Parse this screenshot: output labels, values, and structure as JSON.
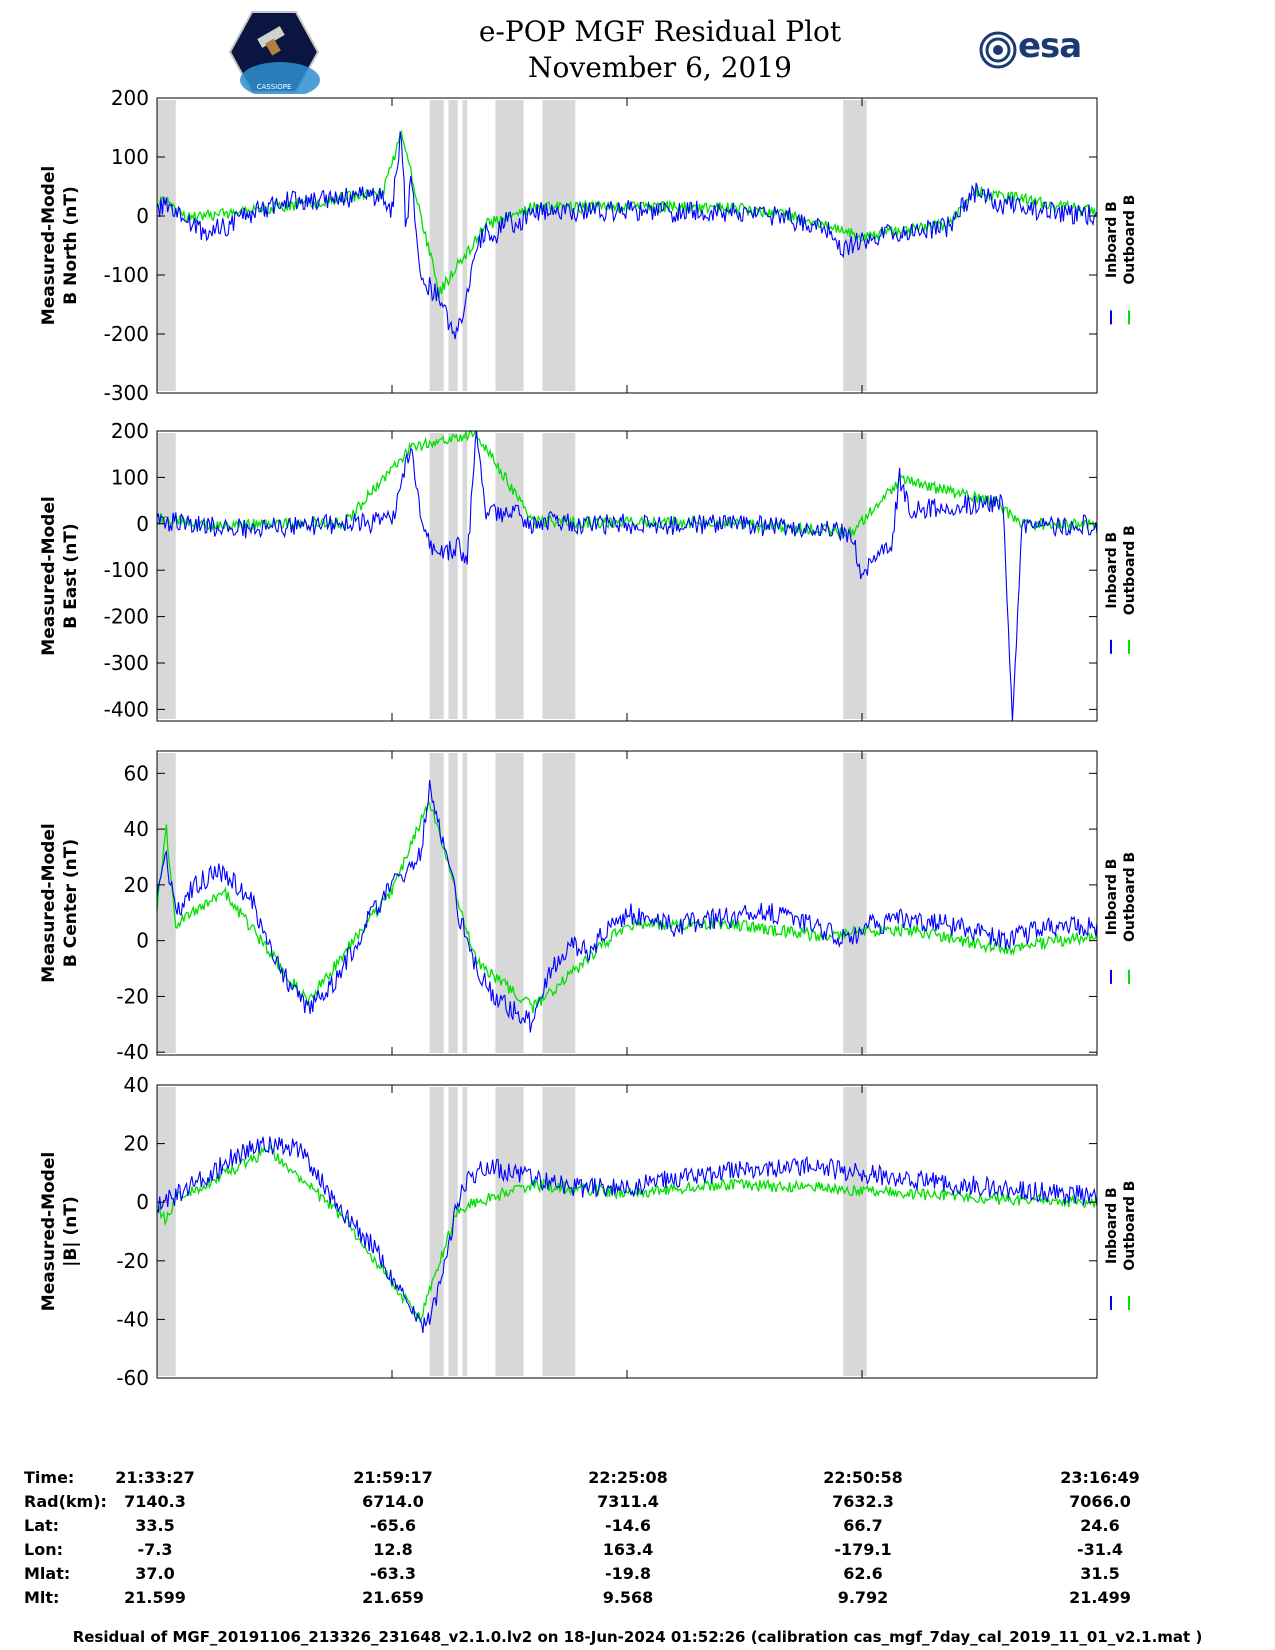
{
  "header": {
    "title_line1": "e-POP MGF Residual Plot",
    "title_line2": "November 6, 2019",
    "esa_logo_text": "esa",
    "mission_logo_text": "CASSIOPE"
  },
  "colors": {
    "inboard": "#0000ff",
    "outboard": "#00e000",
    "gap_shading": "#d8d8d8"
  },
  "chart_data": [
    {
      "type": "line",
      "ylabel": [
        "Measured-Model",
        "B North (nT)"
      ],
      "ylim": [
        -300,
        200
      ],
      "yticks": [
        200,
        100,
        0,
        -100,
        -200,
        -300
      ],
      "legend": [
        "Inboard B",
        "Outboard B"
      ],
      "series": [
        {
          "name": "Inboard B",
          "x": [
            0,
            1,
            2,
            3,
            4,
            5,
            7,
            10,
            14,
            17,
            20,
            24,
            25,
            26,
            26.5,
            27,
            28,
            29,
            30,
            31,
            32,
            33,
            34,
            35,
            36,
            37,
            38,
            40,
            42,
            45,
            48,
            52,
            55,
            58,
            62,
            65,
            67,
            68,
            70,
            72,
            73,
            75,
            78,
            81,
            84,
            87,
            90,
            93,
            96,
            100
          ],
          "y": [
            15,
            18,
            5,
            -5,
            -20,
            -28,
            -20,
            5,
            25,
            28,
            30,
            35,
            10,
            145,
            -30,
            70,
            -100,
            -120,
            -140,
            -180,
            -200,
            -120,
            -60,
            -20,
            -40,
            0,
            -15,
            5,
            10,
            5,
            8,
            10,
            5,
            10,
            5,
            0,
            5,
            -10,
            -20,
            -30,
            -60,
            -40,
            -30,
            -25,
            -20,
            40,
            20,
            12,
            5,
            2
          ]
        },
        {
          "name": "Outboard B",
          "x": [
            0,
            1,
            2,
            3,
            10,
            20,
            24,
            26,
            30,
            35,
            40,
            60,
            67,
            75,
            84,
            87,
            100
          ],
          "y": [
            25,
            28,
            8,
            -3,
            8,
            32,
            38,
            140,
            -130,
            -15,
            15,
            15,
            2,
            -35,
            -15,
            42,
            6
          ]
        }
      ],
      "gaps": [
        [
          0,
          2
        ],
        [
          29,
          30.5
        ],
        [
          31,
          32
        ],
        [
          32.5,
          33
        ],
        [
          36,
          39
        ],
        [
          41,
          44.5
        ],
        [
          73,
          75.5
        ]
      ]
    },
    {
      "type": "line",
      "ylabel": [
        "Measured-Model",
        "B East (nT)"
      ],
      "ylim": [
        -425,
        200
      ],
      "yticks": [
        200,
        100,
        0,
        -100,
        -200,
        -300,
        -400
      ],
      "legend": [
        "Inboard B",
        "Outboard B"
      ],
      "series": [
        {
          "name": "Inboard B",
          "x": [
            0,
            2,
            5,
            10,
            15,
            20,
            25,
            27,
            28,
            29,
            30,
            32,
            33,
            34,
            35,
            36,
            37,
            38,
            39,
            40,
            42,
            45,
            50,
            55,
            60,
            65,
            70,
            74,
            75,
            77,
            78,
            79,
            80,
            85,
            89,
            90,
            91,
            92,
            95,
            100
          ],
          "y": [
            5,
            3,
            -5,
            -10,
            -5,
            0,
            5,
            170,
            30,
            -40,
            -70,
            -50,
            -80,
            200,
            30,
            20,
            10,
            40,
            10,
            0,
            5,
            0,
            0,
            -5,
            0,
            -5,
            -10,
            -20,
            -120,
            -40,
            -70,
            100,
            30,
            40,
            45,
            50,
            -420,
            0,
            -5,
            -2
          ]
        },
        {
          "name": "Outboard B",
          "x": [
            0,
            2,
            5,
            20,
            27,
            34,
            40,
            60,
            74,
            79,
            89,
            92,
            100
          ],
          "y": [
            12,
            8,
            -3,
            2,
            165,
            195,
            4,
            2,
            -18,
            95,
            48,
            0,
            -2
          ]
        }
      ],
      "gaps": [
        [
          0,
          2
        ],
        [
          29,
          30.5
        ],
        [
          31,
          32
        ],
        [
          32.5,
          33
        ],
        [
          36,
          39
        ],
        [
          41,
          44.5
        ],
        [
          73,
          75.5
        ]
      ]
    },
    {
      "type": "line",
      "ylabel": [
        "Measured-Model",
        "B Center (nT)"
      ],
      "ylim": [
        -41,
        68
      ],
      "yticks": [
        60,
        40,
        20,
        0,
        -20,
        -40
      ],
      "legend": [
        "Inboard B",
        "Outboard B"
      ],
      "series": [
        {
          "name": "Inboard B",
          "x": [
            0,
            1,
            2,
            4,
            7,
            10,
            13,
            16,
            19,
            22,
            25,
            28,
            29,
            30,
            31,
            32,
            34,
            36,
            38,
            40,
            42,
            44,
            46,
            48,
            50,
            55,
            60,
            65,
            70,
            74,
            75,
            80,
            85,
            90,
            95,
            100
          ],
          "y": [
            15,
            30,
            10,
            20,
            25,
            15,
            -10,
            -25,
            -15,
            5,
            20,
            30,
            55,
            40,
            30,
            10,
            -10,
            -20,
            -25,
            -30,
            -10,
            0,
            -5,
            5,
            10,
            5,
            8,
            10,
            5,
            0,
            5,
            8,
            5,
            0,
            5,
            5
          ]
        },
        {
          "name": "Outboard B",
          "x": [
            0,
            1,
            2,
            7,
            16,
            25,
            29,
            34,
            40,
            50,
            60,
            70,
            80,
            90,
            100
          ],
          "y": [
            12,
            40,
            6,
            18,
            -22,
            18,
            50,
            -8,
            -24,
            6,
            6,
            2,
            4,
            -3,
            2
          ]
        }
      ],
      "gaps": [
        [
          0,
          2
        ],
        [
          29,
          30.5
        ],
        [
          31,
          32
        ],
        [
          32.5,
          33
        ],
        [
          36,
          39
        ],
        [
          41,
          44.5
        ],
        [
          73,
          75.5
        ]
      ]
    },
    {
      "type": "line",
      "ylabel": [
        "Measured-Model",
        "|B| (nT)"
      ],
      "ylim": [
        -60,
        40
      ],
      "yticks": [
        40,
        20,
        0,
        -20,
        -40,
        -60
      ],
      "legend": [
        "Inboard B",
        "Outboard B"
      ],
      "series": [
        {
          "name": "Inboard B",
          "x": [
            0,
            2,
            5,
            8,
            10,
            12,
            15,
            17,
            20,
            23,
            25,
            27,
            28,
            29,
            30,
            31,
            32,
            33,
            34,
            35,
            38,
            40,
            45,
            50,
            55,
            60,
            65,
            70,
            75,
            80,
            85,
            90,
            95,
            100
          ],
          "y": [
            0,
            2,
            8,
            15,
            18,
            20,
            18,
            10,
            -5,
            -15,
            -25,
            -35,
            -42,
            -40,
            -30,
            -15,
            0,
            8,
            10,
            12,
            10,
            8,
            5,
            5,
            8,
            10,
            12,
            12,
            10,
            8,
            6,
            5,
            3,
            2
          ]
        },
        {
          "name": "Outboard B",
          "x": [
            0,
            1,
            2,
            5,
            12,
            20,
            28,
            32,
            40,
            50,
            60,
            70,
            80,
            90,
            100
          ],
          "y": [
            -3,
            -6,
            1,
            6,
            18,
            -6,
            -40,
            -2,
            6,
            3,
            6,
            5,
            3,
            1,
            0
          ]
        }
      ],
      "gaps": [
        [
          0,
          2
        ],
        [
          29,
          30.5
        ],
        [
          31,
          32
        ],
        [
          32.5,
          33
        ],
        [
          36,
          39
        ],
        [
          41,
          44.5
        ],
        [
          73,
          75.5
        ]
      ]
    }
  ],
  "orbit": {
    "labels": [
      "Time:",
      "Rad(km):",
      "Lat:",
      "Lon:",
      "Mlat:",
      "Mlt:"
    ],
    "columns": [
      [
        "21:33:27",
        "7140.3",
        "33.5",
        "-7.3",
        "37.0",
        "21.599"
      ],
      [
        "21:59:17",
        "6714.0",
        "-65.6",
        "12.8",
        "-63.3",
        "21.659"
      ],
      [
        "22:25:08",
        "7311.4",
        "-14.6",
        "163.4",
        "-19.8",
        "9.568"
      ],
      [
        "22:50:58",
        "7632.3",
        "66.7",
        "-179.1",
        "62.6",
        "9.792"
      ],
      [
        "23:16:49",
        "7066.0",
        "24.6",
        "-31.4",
        "31.5",
        "21.499"
      ]
    ]
  },
  "footer": "Residual of MGF_20191106_213326_231648_v2.1.0.lv2 on 18-Jun-2024 01:52:26 (calibration cas_mgf_7day_cal_2019_11_01_v2.1.mat )"
}
